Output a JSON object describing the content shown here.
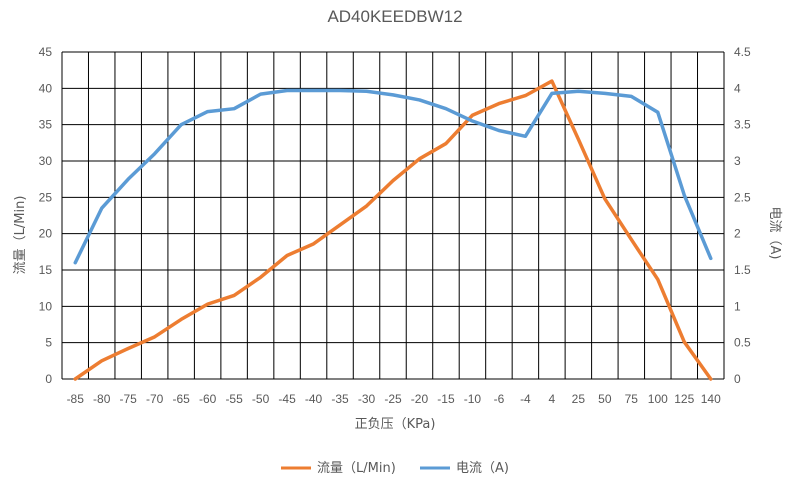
{
  "chart_data": {
    "type": "line",
    "title": "AD40KEEDBW12",
    "xlabel": "正负压（KPa)",
    "ylabel": "流量（L/Min)",
    "y2label": "电流（A)",
    "categories": [
      "-85",
      "-80",
      "-75",
      "-70",
      "-65",
      "-60",
      "-55",
      "-50",
      "-45",
      "-40",
      "-35",
      "-30",
      "-25",
      "-20",
      "-15",
      "-10",
      "-6",
      "-4",
      "4",
      "25",
      "50",
      "75",
      "100",
      "125",
      "140"
    ],
    "series": [
      {
        "name": "流量（L/Min)",
        "axis": "left",
        "color": "#ED7D31",
        "values": [
          0,
          2.5,
          4.2,
          5.8,
          8.2,
          10.3,
          11.5,
          14,
          17,
          18.6,
          21.2,
          23.8,
          27.3,
          30.3,
          32.4,
          36.3,
          37.9,
          39,
          41,
          33,
          24.8,
          19.2,
          13.7,
          5.1,
          0
        ]
      },
      {
        "name": "电流（A)",
        "axis": "right",
        "color": "#5B9BD5",
        "values": [
          1.6,
          2.35,
          2.75,
          3.1,
          3.5,
          3.68,
          3.72,
          3.92,
          3.97,
          3.97,
          3.97,
          3.96,
          3.91,
          3.84,
          3.72,
          3.55,
          3.42,
          3.34,
          3.93,
          3.96,
          3.93,
          3.89,
          3.67,
          2.53,
          1.66
        ]
      }
    ],
    "ylim": [
      0,
      45
    ],
    "yticks": [
      "0",
      "5",
      "10",
      "15",
      "20",
      "25",
      "30",
      "35",
      "40",
      "45"
    ],
    "y2lim": [
      0,
      4.5
    ],
    "y2ticks": [
      "0",
      "0.5",
      "1",
      "1.5",
      "2",
      "2.5",
      "3",
      "3.5",
      "4",
      "4.5"
    ],
    "grid": true,
    "legend": "bottom"
  }
}
